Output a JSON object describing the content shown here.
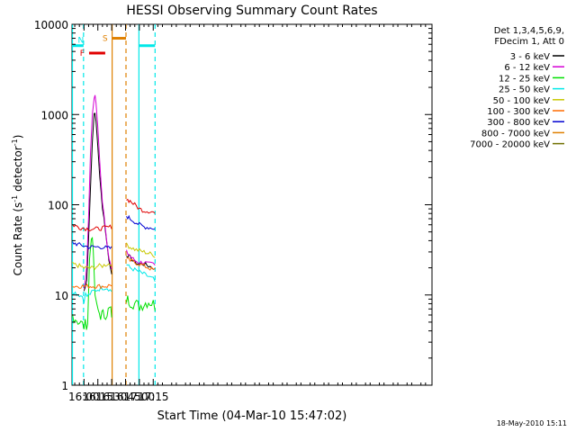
{
  "chart_data": {
    "type": "line",
    "title": "HESSI Observing Summary Count Rates",
    "xlabel": "Start Time (04-Mar-10 15:47:02)",
    "ylabel_prefix": "Count Rate (s",
    "ylabel_sup1": "-1",
    "ylabel_mid": " detector",
    "ylabel_sup2": "-1",
    "ylabel_suffix": ")",
    "ylabel": "Count Rate (s^-1 detector^-1)",
    "y_scale": "log",
    "ylim": [
      1,
      10000
    ],
    "xlim_minutes": [
      947.0,
      1337.0
    ],
    "x_ticks": [
      {
        "label": "16:00",
        "minutes": 960
      },
      {
        "label": "16:15",
        "minutes": 975
      },
      {
        "label": "16:30",
        "minutes": 990
      },
      {
        "label": "16:45",
        "minutes": 1005
      },
      {
        "label": "17:00",
        "minutes": 1020
      },
      {
        "label": "17:15",
        "minutes": 1035
      }
    ],
    "y_ticks": [
      {
        "label": "1",
        "value": 1
      },
      {
        "label": "10",
        "value": 10
      },
      {
        "label": "100",
        "value": 100
      },
      {
        "label": "1000",
        "value": 1000
      },
      {
        "label": "10000",
        "value": 10000
      }
    ],
    "legend_placement": "right",
    "legend_header": [
      "Det 1,3,4,5,6,9,",
      "FDecim 1, Att 0"
    ],
    "series": [
      {
        "name": "3 - 6 keV",
        "color": "#000000",
        "points": [
          [
            947.5,
            12
          ],
          [
            960,
            11
          ],
          [
            963,
            15
          ],
          [
            965,
            45
          ],
          [
            967,
            150
          ],
          [
            969,
            520
          ],
          [
            971,
            980
          ],
          [
            972,
            1020
          ],
          [
            973,
            850
          ],
          [
            975,
            450
          ],
          [
            977,
            200
          ],
          [
            980,
            95
          ],
          [
            983,
            55
          ],
          [
            985,
            35
          ],
          [
            987,
            25
          ],
          [
            989,
            19
          ],
          [
            990,
            17
          ],
          [
            1006,
            28
          ],
          [
            1010,
            26
          ],
          [
            1015,
            23
          ],
          [
            1020,
            22
          ],
          [
            1025,
            22
          ],
          [
            1030,
            21
          ],
          [
            1035,
            20
          ],
          [
            1037,
            19
          ]
        ]
      },
      {
        "name": "6 - 12 keV",
        "color": "#d400d4",
        "points": [
          [
            947.5,
            14
          ],
          [
            960,
            12
          ],
          [
            963,
            20
          ],
          [
            965,
            80
          ],
          [
            967,
            350
          ],
          [
            969,
            1000
          ],
          [
            971,
            1550
          ],
          [
            972,
            1620
          ],
          [
            973,
            1350
          ],
          [
            975,
            700
          ],
          [
            977,
            300
          ],
          [
            980,
            110
          ],
          [
            983,
            60
          ],
          [
            985,
            38
          ],
          [
            987,
            26
          ],
          [
            989,
            21
          ],
          [
            990,
            19
          ],
          [
            1006,
            30
          ],
          [
            1010,
            27
          ],
          [
            1015,
            24
          ],
          [
            1020,
            23
          ],
          [
            1025,
            23
          ],
          [
            1030,
            22
          ],
          [
            1035,
            22
          ],
          [
            1037,
            21
          ]
        ]
      },
      {
        "name": "12 - 25 keV",
        "color": "#00e000",
        "points": [
          [
            947.5,
            6
          ],
          [
            955,
            5
          ],
          [
            960,
            4.5
          ],
          [
            964,
            5
          ],
          [
            966,
            25
          ],
          [
            968,
            42
          ],
          [
            969,
            45
          ],
          [
            970,
            30
          ],
          [
            972,
            10
          ],
          [
            974,
            7
          ],
          [
            978,
            6
          ],
          [
            982,
            6
          ],
          [
            985,
            6.5
          ],
          [
            989,
            7
          ],
          [
            990,
            5
          ],
          [
            1006,
            9
          ],
          [
            1010,
            8.5
          ],
          [
            1015,
            8
          ],
          [
            1020,
            7.5
          ],
          [
            1025,
            8
          ],
          [
            1030,
            8.5
          ],
          [
            1035,
            8
          ],
          [
            1037,
            7.5
          ]
        ]
      },
      {
        "name": "25 - 50 keV",
        "color": "#00e8e8",
        "points": [
          [
            947.5,
            11
          ],
          [
            955,
            10
          ],
          [
            960,
            9.5
          ],
          [
            965,
            10
          ],
          [
            970,
            11
          ],
          [
            975,
            11.5
          ],
          [
            980,
            12
          ],
          [
            985,
            12
          ],
          [
            990,
            11
          ],
          [
            1006,
            22
          ],
          [
            1010,
            20
          ],
          [
            1015,
            19
          ],
          [
            1020,
            18
          ],
          [
            1025,
            17
          ],
          [
            1030,
            16
          ],
          [
            1035,
            15
          ],
          [
            1037,
            14
          ]
        ]
      },
      {
        "name": "50 - 100 keV",
        "color": "#c8c800",
        "points": [
          [
            947.5,
            22
          ],
          [
            955,
            21
          ],
          [
            960,
            20
          ],
          [
            965,
            20
          ],
          [
            970,
            20
          ],
          [
            975,
            21
          ],
          [
            980,
            21
          ],
          [
            985,
            22
          ],
          [
            990,
            22
          ],
          [
            1006,
            36
          ],
          [
            1010,
            34
          ],
          [
            1015,
            32
          ],
          [
            1020,
            31
          ],
          [
            1025,
            30
          ],
          [
            1030,
            29
          ],
          [
            1035,
            28
          ],
          [
            1037,
            27
          ]
        ]
      },
      {
        "name": "100 - 300 keV",
        "color": "#ff6a00",
        "points": [
          [
            947.5,
            12.5
          ],
          [
            955,
            12.5
          ],
          [
            960,
            12.5
          ],
          [
            965,
            12.5
          ],
          [
            970,
            12.5
          ],
          [
            975,
            12.5
          ],
          [
            980,
            12.5
          ],
          [
            985,
            12.5
          ],
          [
            990,
            13
          ],
          [
            1006,
            25
          ],
          [
            1010,
            24
          ],
          [
            1015,
            23
          ],
          [
            1020,
            22
          ],
          [
            1025,
            21
          ],
          [
            1030,
            20
          ],
          [
            1035,
            19
          ],
          [
            1037,
            19
          ]
        ]
      },
      {
        "name": "300 - 800 keV",
        "color": "#0000d0",
        "points": [
          [
            947.5,
            38
          ],
          [
            955,
            36
          ],
          [
            960,
            35
          ],
          [
            965,
            34
          ],
          [
            970,
            34
          ],
          [
            975,
            34
          ],
          [
            980,
            34
          ],
          [
            985,
            33
          ],
          [
            990,
            33
          ],
          [
            1006,
            75
          ],
          [
            1010,
            70
          ],
          [
            1015,
            65
          ],
          [
            1020,
            60
          ],
          [
            1025,
            57
          ],
          [
            1030,
            56
          ],
          [
            1035,
            55
          ],
          [
            1037,
            54
          ]
        ]
      },
      {
        "name": "800 - 7000 keV",
        "color": "#e08000",
        "points": []
      },
      {
        "name": "7000 - 20000 keV",
        "color": "#707000",
        "points": []
      },
      {
        "name": "",
        "color": "#e00000",
        "points": [
          [
            947.5,
            60
          ],
          [
            955,
            56
          ],
          [
            960,
            55
          ],
          [
            965,
            54
          ],
          [
            970,
            54
          ],
          [
            975,
            54
          ],
          [
            980,
            55
          ],
          [
            985,
            56
          ],
          [
            990,
            57
          ],
          [
            1006,
            115
          ],
          [
            1010,
            110
          ],
          [
            1015,
            100
          ],
          [
            1020,
            90
          ],
          [
            1025,
            86
          ],
          [
            1030,
            85
          ],
          [
            1035,
            83
          ],
          [
            1037,
            80
          ]
        ]
      }
    ],
    "flags": [
      {
        "label": "N",
        "color": "#00e8e8",
        "start": 947.5,
        "end": 959.5,
        "y": 5800
      },
      {
        "label": "F",
        "color": "#e00000",
        "start": 965.5,
        "end": 983.0,
        "y": 4800
      },
      {
        "label": "S",
        "color": "#e08000",
        "start": 990.5,
        "end": 1005.5,
        "y": 7000
      },
      {
        "label": "",
        "color": "#00e8e8",
        "start": 1019.5,
        "end": 1037.0,
        "y": 5800
      }
    ],
    "vertical_lines": [
      {
        "minutes": 947.5,
        "color": "#00e8e8",
        "style": "solid"
      },
      {
        "minutes": 959.5,
        "color": "#00e8e8",
        "style": "dashed"
      },
      {
        "minutes": 990.5,
        "color": "#e08000",
        "style": "solid"
      },
      {
        "minutes": 1005.5,
        "color": "#e08000",
        "style": "dashed"
      },
      {
        "minutes": 1019.5,
        "color": "#00e8e8",
        "style": "solid"
      },
      {
        "minutes": 1037.0,
        "color": "#00e8e8",
        "style": "dashed"
      }
    ],
    "grid": false,
    "stamp": "18-May-2010 15:11"
  }
}
